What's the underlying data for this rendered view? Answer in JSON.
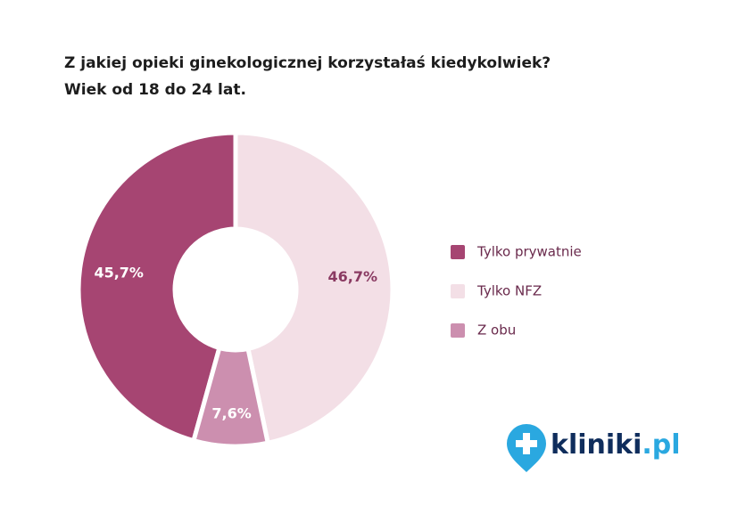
{
  "chart_data": {
    "type": "donut",
    "title": "Z jakiej opieki ginekologicznej korzystałaś kiedykolwiek?",
    "subtitle": "Wiek od 18 do 24 lat.",
    "categories": [
      "Tylko prywatnie",
      "Tylko NFZ",
      "Z obu"
    ],
    "values": [
      45.7,
      46.7,
      7.6
    ],
    "value_labels": [
      "45,7%",
      "46,7%",
      "7,6%"
    ],
    "colors": [
      "#a64572",
      "#f3dfe6",
      "#cc8faf"
    ],
    "label_colors": [
      "#ffffff",
      "#8a3a62",
      "#ffffff"
    ],
    "legend": "right"
  },
  "logo": {
    "name": "kliniki",
    "domain": ".pl"
  }
}
